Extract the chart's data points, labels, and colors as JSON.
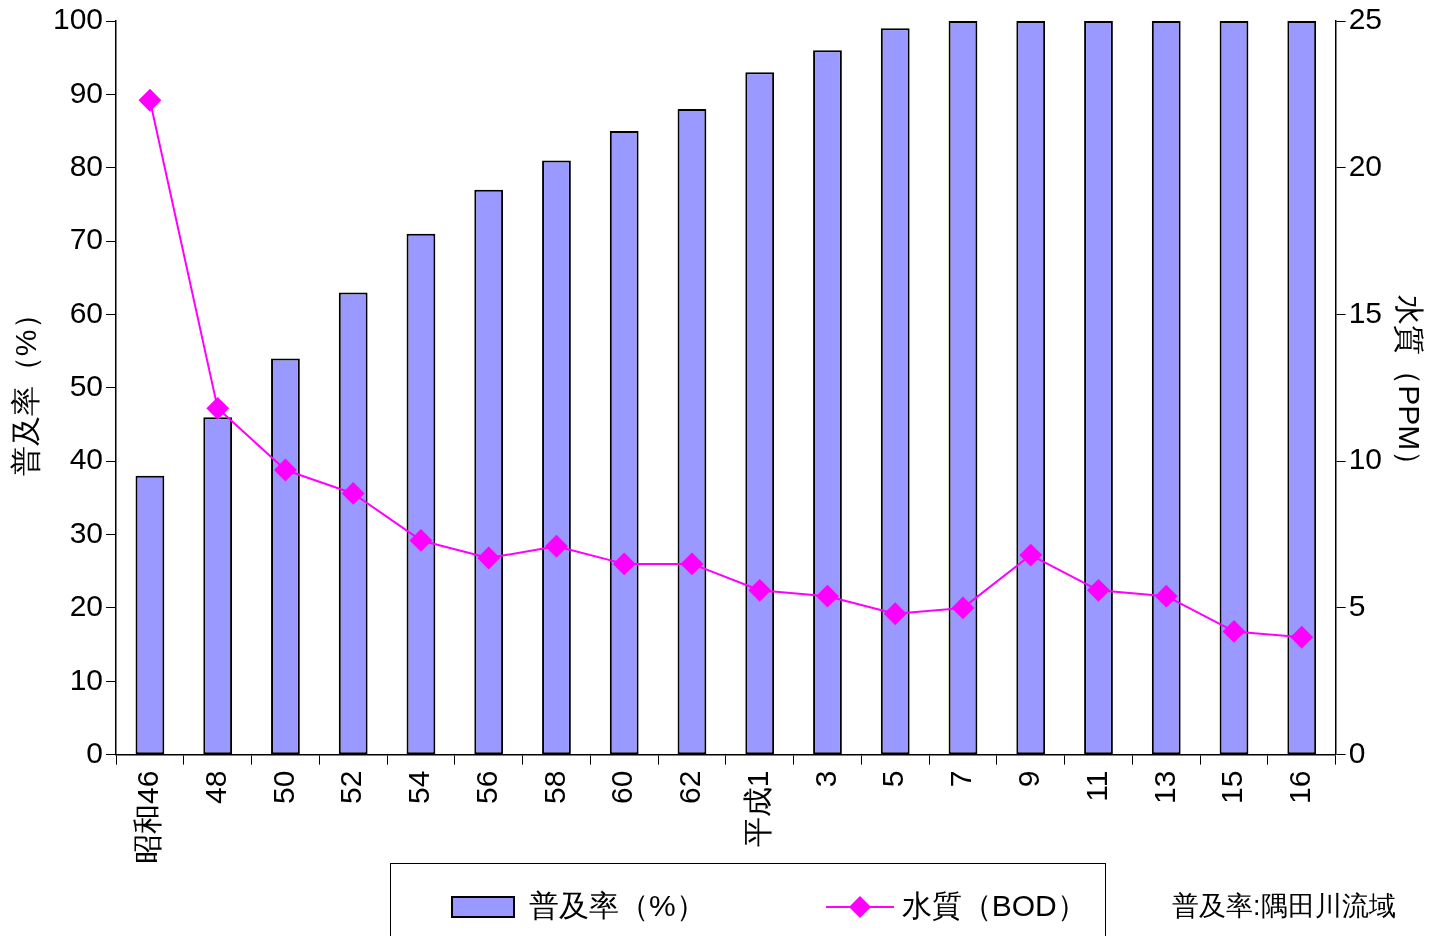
{
  "chart_data": {
    "type": "bar",
    "ylabel": "普及率（%）",
    "y2label": "水質（PPM）",
    "categories": [
      "昭和46",
      "48",
      "50",
      "52",
      "54",
      "56",
      "58",
      "60",
      "62",
      "平成1",
      "3",
      "5",
      "7",
      "9",
      "11",
      "13",
      "15",
      "16"
    ],
    "series": [
      {
        "name": "普及率（%）",
        "color": "#9999ff",
        "values": [
          38,
          46,
          54,
          63,
          71,
          77,
          81,
          85,
          88,
          93,
          96,
          99,
          100,
          100,
          100,
          100,
          100,
          100
        ]
      },
      {
        "name": "水質（BOD）",
        "type": "line",
        "axis": "y2",
        "color": "#ff00ff",
        "values": [
          22.3,
          11.8,
          9.7,
          8.9,
          7.3,
          6.7,
          7.1,
          6.5,
          6.5,
          5.6,
          5.4,
          4.8,
          5.0,
          6.8,
          5.6,
          5.4,
          4.2,
          4.0
        ]
      }
    ],
    "ylim": [
      0,
      100
    ],
    "yticks": [
      0,
      10,
      20,
      30,
      40,
      50,
      60,
      70,
      80,
      90,
      100
    ],
    "y2lim": [
      0,
      25
    ],
    "y2ticks": [
      0,
      5,
      10,
      15,
      20,
      25
    ],
    "marker": "diamond",
    "legend": "bottom",
    "annotations": [
      "普及率:隅田川流域"
    ]
  }
}
